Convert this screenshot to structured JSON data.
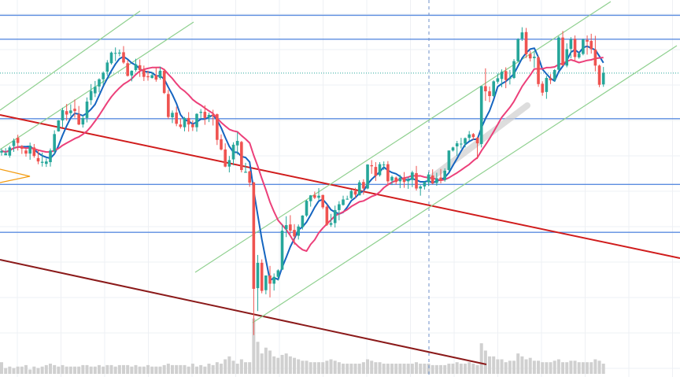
{
  "chart_data": {
    "type": "candlestick",
    "title": "",
    "xlabel": "",
    "ylabel": "",
    "grid": true,
    "ylim": [
      0,
      100
    ],
    "candles": [
      [
        55.9,
        57.0,
        55.0,
        56.4
      ],
      [
        55.1,
        57.2,
        55.3,
        55.7
      ],
      [
        55.0,
        57.9,
        54.4,
        57.4
      ],
      [
        57.8,
        60.0,
        56.1,
        59.4
      ],
      [
        60.2,
        61.1,
        56.5,
        58.7
      ],
      [
        57.8,
        58.1,
        55.5,
        57.0
      ],
      [
        56.5,
        57.3,
        54.7,
        55.6
      ],
      [
        55.6,
        58.8,
        53.8,
        57.9
      ],
      [
        57.4,
        58.4,
        54.4,
        54.9
      ],
      [
        54.3,
        56.8,
        52.5,
        53.3
      ],
      [
        52.9,
        55.9,
        51.8,
        53.2
      ],
      [
        52.6,
        54.2,
        51.7,
        53.3
      ],
      [
        53.1,
        57.1,
        51.8,
        56.5
      ],
      [
        56.3,
        62.4,
        55.5,
        61.3
      ],
      [
        62.1,
        65.4,
        62.0,
        65.3
      ],
      [
        65.3,
        69.0,
        63.3,
        68.3
      ],
      [
        68.0,
        70.1,
        65.2,
        67.0
      ],
      [
        67.4,
        70.0,
        66.5,
        68.2
      ],
      [
        68.7,
        71.4,
        66.1,
        68.0
      ],
      [
        67.1,
        69.5,
        63.9,
        64.1
      ],
      [
        64.1,
        66.9,
        63.2,
        66.0
      ],
      [
        66.0,
        72.0,
        64.7,
        70.8
      ],
      [
        71.2,
        75.9,
        69.8,
        73.9
      ],
      [
        73.2,
        76.8,
        72.1,
        75.1
      ],
      [
        75.2,
        77.6,
        73.5,
        77.3
      ],
      [
        77.3,
        79.6,
        75.6,
        79.2
      ],
      [
        79.5,
        82.9,
        78.3,
        82.2
      ],
      [
        82.0,
        85.4,
        81.6,
        85.1
      ],
      [
        84.9,
        86.6,
        82.6,
        85.0
      ],
      [
        84.8,
        86.0,
        84.0,
        85.1
      ],
      [
        85.2,
        87.0,
        81.8,
        82.2
      ],
      [
        82.0,
        82.9,
        78.1,
        78.3
      ],
      [
        78.4,
        79.9,
        76.7,
        79.8
      ],
      [
        80.0,
        83.3,
        79.5,
        81.7
      ],
      [
        81.4,
        83.1,
        78.0,
        80.0
      ],
      [
        80.1,
        81.3,
        76.8,
        78.0
      ],
      [
        78.2,
        79.8,
        76.9,
        77.9
      ],
      [
        77.7,
        79.4,
        77.5,
        78.5
      ],
      [
        78.5,
        80.8,
        76.6,
        77.2
      ],
      [
        77.7,
        81.0,
        77.2,
        79.8
      ],
      [
        79.8,
        80.3,
        73.0,
        73.3
      ],
      [
        73.0,
        74.2,
        65.7,
        66.3
      ],
      [
        66.2,
        68.2,
        64.5,
        67.5
      ],
      [
        67.6,
        69.3,
        63.6,
        64.3
      ],
      [
        64.1,
        65.9,
        62.9,
        63.4
      ],
      [
        63.3,
        66.3,
        62.1,
        66.0
      ],
      [
        66.0,
        67.7,
        62.0,
        64.1
      ],
      [
        64.1,
        65.3,
        62.2,
        63.3
      ],
      [
        63.3,
        67.4,
        62.0,
        67.2
      ],
      [
        67.5,
        68.6,
        66.0,
        67.8
      ],
      [
        67.8,
        69.7,
        64.0,
        66.0
      ],
      [
        66.1,
        67.5,
        64.8,
        66.9
      ],
      [
        67.0,
        68.4,
        63.8,
        66.5
      ],
      [
        67.1,
        67.3,
        58.1,
        59.6
      ],
      [
        59.8,
        61.2,
        56.5,
        56.8
      ],
      [
        56.8,
        58.6,
        51.6,
        51.8
      ],
      [
        51.8,
        54.9,
        50.1,
        53.7
      ],
      [
        53.9,
        58.9,
        52.2,
        58.2
      ],
      [
        58.0,
        61.8,
        55.3,
        59.3
      ],
      [
        59.0,
        59.3,
        50.1,
        50.8
      ],
      [
        50.0,
        52.9,
        50.0,
        50.3
      ],
      [
        50.4,
        50.6,
        45.9,
        47.1
      ],
      [
        47.2,
        47.3,
        2.6,
        16.1
      ],
      [
        16.3,
        26.0,
        9.6,
        23.7
      ],
      [
        23.7,
        24.7,
        14.8,
        15.5
      ],
      [
        15.7,
        20.0,
        14.5,
        20.0
      ],
      [
        20.0,
        22.8,
        13.6,
        17.6
      ],
      [
        17.6,
        20.6,
        15.6,
        19.6
      ],
      [
        19.6,
        21.8,
        18.5,
        21.5
      ],
      [
        21.7,
        34.9,
        21.6,
        33.1
      ],
      [
        33.5,
        37.3,
        31.2,
        34.7
      ],
      [
        34.9,
        37.6,
        32.1,
        33.1
      ],
      [
        33.3,
        35.0,
        29.0,
        31.4
      ],
      [
        31.6,
        34.9,
        30.5,
        34.3
      ],
      [
        34.1,
        37.6,
        33.4,
        37.5
      ],
      [
        37.5,
        42.1,
        37.1,
        41.8
      ],
      [
        41.7,
        43.5,
        40.1,
        43.4
      ],
      [
        43.5,
        44.5,
        42.3,
        42.7
      ],
      [
        42.7,
        45.5,
        42.1,
        43.3
      ],
      [
        43.5,
        43.6,
        39.4,
        39.9
      ],
      [
        40.1,
        40.7,
        34.5,
        34.8
      ],
      [
        34.8,
        38.0,
        34.2,
        35.3
      ],
      [
        35.3,
        40.4,
        34.0,
        39.1
      ],
      [
        39.1,
        41.7,
        36.1,
        40.8
      ],
      [
        40.6,
        43.3,
        40.4,
        42.2
      ],
      [
        42.2,
        43.3,
        42.1,
        42.4
      ],
      [
        42.6,
        45.1,
        42.3,
        44.7
      ],
      [
        44.7,
        45.6,
        42.6,
        43.6
      ],
      [
        43.4,
        47.8,
        43.4,
        47.2
      ],
      [
        47.3,
        48.1,
        43.6,
        45.4
      ],
      [
        45.4,
        52.5,
        45.2,
        52.4
      ],
      [
        52.2,
        53.7,
        49.7,
        51.9
      ],
      [
        51.7,
        53.1,
        47.6,
        49.1
      ],
      [
        49.3,
        53.1,
        48.9,
        52.5
      ],
      [
        52.4,
        53.3,
        50.8,
        52.4
      ],
      [
        52.5,
        53.4,
        46.2,
        47.5
      ],
      [
        47.7,
        49.2,
        46.4,
        48.8
      ],
      [
        48.6,
        48.9,
        46.5,
        47.3
      ],
      [
        47.5,
        49.4,
        45.5,
        48.6
      ],
      [
        48.5,
        50.2,
        45.6,
        47.3
      ],
      [
        47.5,
        48.8,
        45.3,
        48.0
      ],
      [
        47.9,
        50.6,
        45.8,
        50.1
      ],
      [
        49.9,
        52.0,
        44.8,
        45.4
      ],
      [
        45.4,
        46.4,
        43.3,
        46.0
      ],
      [
        46.0,
        47.4,
        45.1,
        47.3
      ],
      [
        47.2,
        50.2,
        46.1,
        49.5
      ],
      [
        49.2,
        51.0,
        46.6,
        46.9
      ],
      [
        47.0,
        50.0,
        46.2,
        48.4
      ],
      [
        48.6,
        51.1,
        46.9,
        47.7
      ],
      [
        47.9,
        51.3,
        47.4,
        50.6
      ],
      [
        50.8,
        56.5,
        50.4,
        56.5
      ],
      [
        56.5,
        57.6,
        56.2,
        57.4
      ],
      [
        57.7,
        59.3,
        54.9,
        58.6
      ],
      [
        58.4,
        60.2,
        57.1,
        58.5
      ],
      [
        58.5,
        60.3,
        57.4,
        60.1
      ],
      [
        60.2,
        62.2,
        59.3,
        61.2
      ],
      [
        61.3,
        61.6,
        59.6,
        60.4
      ],
      [
        60.2,
        60.5,
        54.0,
        58.6
      ],
      [
        58.4,
        75.4,
        57.4,
        75.3
      ],
      [
        75.3,
        80.5,
        71.0,
        73.8
      ],
      [
        73.8,
        75.2,
        70.6,
        72.4
      ],
      [
        72.4,
        77.0,
        72.2,
        76.7
      ],
      [
        76.6,
        79.0,
        76.0,
        77.6
      ],
      [
        77.4,
        80.2,
        75.0,
        79.5
      ],
      [
        79.7,
        80.8,
        74.7,
        77.1
      ],
      [
        77.4,
        80.0,
        75.8,
        77.7
      ],
      [
        77.7,
        83.2,
        77.4,
        82.6
      ],
      [
        82.6,
        89.3,
        82.4,
        89.0
      ],
      [
        89.2,
        92.5,
        88.5,
        91.0
      ],
      [
        91.1,
        92.3,
        83.5,
        84.6
      ],
      [
        84.7,
        85.6,
        82.5,
        83.4
      ],
      [
        83.5,
        85.5,
        80.7,
        83.9
      ],
      [
        83.7,
        84.2,
        75.1,
        75.9
      ],
      [
        76.0,
        76.7,
        72.5,
        73.4
      ],
      [
        73.6,
        78.3,
        71.6,
        77.7
      ],
      [
        77.6,
        78.8,
        75.9,
        77.0
      ],
      [
        77.2,
        80.3,
        76.6,
        80.0
      ],
      [
        80.1,
        89.9,
        79.9,
        89.5
      ],
      [
        89.5,
        91.4,
        81.2,
        81.4
      ],
      [
        81.3,
        87.8,
        80.8,
        86.1
      ],
      [
        86.2,
        89.6,
        83.4,
        89.0
      ],
      [
        89.1,
        90.1,
        82.8,
        83.8
      ],
      [
        83.7,
        85.2,
        83.3,
        84.8
      ],
      [
        84.7,
        89.2,
        84.3,
        88.9
      ],
      [
        88.8,
        90.1,
        84.5,
        88.3
      ],
      [
        88.5,
        90.6,
        84.8,
        86.1
      ],
      [
        86.0,
        90.0,
        79.6,
        81.3
      ],
      [
        81.3,
        81.6,
        75.0,
        75.7
      ],
      [
        75.8,
        80.9,
        75.1,
        79.2
      ]
    ],
    "volume": [
      8,
      4,
      5,
      4,
      5,
      5,
      6,
      3,
      5,
      4,
      5,
      6,
      7,
      6,
      5,
      6,
      5,
      5,
      5,
      5,
      6,
      6,
      5,
      5,
      6,
      5,
      6,
      6,
      5,
      6,
      6,
      6,
      5,
      6,
      5,
      5,
      6,
      5,
      5,
      5,
      6,
      7,
      6,
      6,
      6,
      6,
      5,
      7,
      5,
      6,
      5,
      7,
      6,
      8,
      7,
      10,
      12,
      9,
      7,
      10,
      8,
      8,
      38,
      22,
      14,
      18,
      16,
      12,
      11,
      13,
      14,
      12,
      11,
      10,
      9,
      9,
      8,
      8,
      8,
      8,
      9,
      10,
      9,
      8,
      7,
      7,
      7,
      7,
      7,
      8,
      10,
      9,
      8,
      8,
      7,
      7,
      7,
      7,
      7,
      7,
      7,
      7,
      8,
      7,
      7,
      7,
      6,
      6,
      6,
      6,
      7,
      7,
      8,
      7,
      7,
      8,
      7,
      6,
      21,
      16,
      12,
      12,
      10,
      10,
      8,
      9,
      9,
      14,
      12,
      10,
      11,
      9,
      9,
      8,
      8,
      8,
      9,
      10,
      8,
      8,
      9,
      9,
      8,
      8,
      8,
      8,
      10,
      9,
      7
    ],
    "moving_averages": [
      {
        "color": "#1565c0",
        "period": 5
      },
      {
        "color": "#ec407a",
        "period": 14
      }
    ],
    "horizontal_levels": [
      {
        "value": 96.0,
        "color": "#5b8de0"
      },
      {
        "value": 89.0,
        "color": "#5b8de0"
      },
      {
        "value": 79.1,
        "color": "#26a69a",
        "style": "dotted"
      },
      {
        "value": 65.8,
        "color": "#5b8de0"
      },
      {
        "value": 46.6,
        "color": "#5b8de0"
      },
      {
        "value": 32.6,
        "color": "#5b8de0"
      }
    ],
    "colors": {
      "up": "#26a69a",
      "down": "#ef5350",
      "volume": "#d0d0d0",
      "grid": "#eef0f4",
      "trend_red": "#d01c1c",
      "trend_dark": "#8b1a1a",
      "channel": "#8fd08f",
      "vertical_marker": "#6d8fc9",
      "arrow_marker": "#f39c12"
    }
  }
}
